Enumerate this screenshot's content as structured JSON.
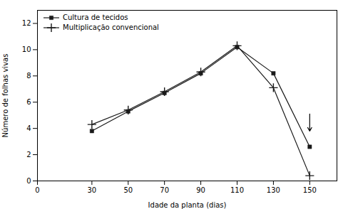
{
  "chart_data": {
    "type": "line",
    "x": [
      30,
      50,
      70,
      90,
      110,
      130,
      150
    ],
    "series": [
      {
        "name": "Cultura de tecidos",
        "color": "#1a1a1a",
        "marker": "square",
        "values": [
          3.8,
          5.3,
          6.7,
          8.2,
          10.2,
          8.2,
          2.6
        ]
      },
      {
        "name": "Multiplicação convencional",
        "color": "#1a1a1a",
        "marker": "plus",
        "values": [
          4.3,
          5.4,
          6.8,
          8.3,
          10.3,
          7.1,
          0.4
        ]
      }
    ],
    "xlabel": "Idade da planta (dias)",
    "ylabel": "Número de folhas vivas",
    "xlim": [
      0,
      165
    ],
    "ylim": [
      0,
      13
    ],
    "xticks": [
      0,
      30,
      50,
      70,
      90,
      110,
      130,
      150
    ],
    "yticks": [
      0,
      2,
      4,
      6,
      8,
      10,
      12
    ],
    "annotations": [
      {
        "type": "arrow",
        "x": 150,
        "y_start": 5.1,
        "y_end": 3.8
      }
    ],
    "legend": "upper left",
    "grid": false
  }
}
